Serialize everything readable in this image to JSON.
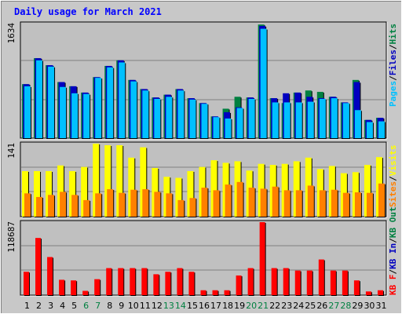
{
  "title": "Daily usage for March 2021",
  "colors": {
    "background": "#c8c8c8",
    "plot_background": "#c0c0c0",
    "title": "#0000ff",
    "hits": "#008040",
    "files": "#0000c0",
    "pages": "#00c0ff",
    "sites": "#ffff00",
    "visits": "#ff8000",
    "kb": "#ff0000",
    "weekend_label": "#008040"
  },
  "chart_data": [
    {
      "type": "bar",
      "panel": "top",
      "ymax_label": "1634",
      "ylim": [
        0,
        1634
      ],
      "legend": [
        {
          "text": "Pages",
          "color": "#00c0ff"
        },
        {
          "text": "Files",
          "color": "#0000c0"
        },
        {
          "text": "Hits",
          "color": "#008040"
        }
      ],
      "categories": [
        "1",
        "2",
        "3",
        "4",
        "5",
        "6",
        "7",
        "8",
        "9",
        "10",
        "11",
        "12",
        "13",
        "14",
        "15",
        "16",
        "17",
        "18",
        "19",
        "20",
        "21",
        "22",
        "23",
        "24",
        "25",
        "26",
        "27",
        "28",
        "29",
        "30",
        "31"
      ],
      "series": [
        {
          "name": "Hits",
          "values": [
            770,
            1140,
            1040,
            800,
            740,
            650,
            870,
            1030,
            1110,
            830,
            700,
            580,
            620,
            700,
            570,
            500,
            310,
            420,
            590,
            580,
            1620,
            570,
            500,
            650,
            680,
            660,
            590,
            510,
            830,
            260,
            290
          ]
        },
        {
          "name": "Files",
          "values": [
            770,
            1140,
            1040,
            800,
            740,
            650,
            870,
            1030,
            1110,
            830,
            700,
            580,
            620,
            700,
            570,
            500,
            310,
            370,
            440,
            580,
            1600,
            570,
            640,
            650,
            590,
            570,
            590,
            510,
            800,
            260,
            290
          ]
        },
        {
          "name": "Pages",
          "values": [
            740,
            1110,
            1020,
            730,
            640,
            630,
            860,
            1010,
            1080,
            810,
            680,
            560,
            590,
            680,
            550,
            490,
            300,
            280,
            430,
            560,
            1560,
            510,
            510,
            510,
            520,
            560,
            570,
            500,
            400,
            230,
            240
          ]
        }
      ]
    },
    {
      "type": "bar",
      "panel": "middle",
      "ymax_label": "141",
      "ylim": [
        0,
        141
      ],
      "legend": [
        {
          "text": "Sites",
          "color": "#ff8000"
        },
        {
          "text": "Visits",
          "color": "#ffff00"
        }
      ],
      "categories": [
        "1",
        "2",
        "3",
        "4",
        "5",
        "6",
        "7",
        "8",
        "9",
        "10",
        "11",
        "12",
        "13",
        "14",
        "15",
        "16",
        "17",
        "18",
        "19",
        "20",
        "21",
        "22",
        "23",
        "24",
        "25",
        "26",
        "27",
        "28",
        "29",
        "30",
        "31"
      ],
      "series": [
        {
          "name": "Visits",
          "values": [
            88,
            88,
            88,
            99,
            88,
            96,
            141,
            138,
            138,
            114,
            134,
            94,
            77,
            75,
            88,
            96,
            109,
            104,
            107,
            89,
            102,
            100,
            102,
            107,
            114,
            92,
            98,
            84,
            86,
            100,
            115
          ]
        },
        {
          "name": "Sites",
          "values": [
            45,
            38,
            42,
            48,
            42,
            32,
            45,
            53,
            46,
            52,
            53,
            48,
            45,
            32,
            36,
            56,
            51,
            62,
            67,
            56,
            54,
            58,
            51,
            51,
            60,
            51,
            52,
            46,
            47,
            46,
            64
          ]
        }
      ]
    },
    {
      "type": "bar",
      "panel": "bottom",
      "ymax_label": "118687",
      "ylim": [
        0,
        118687
      ],
      "legend": [
        {
          "text": "KB F",
          "color": "#ff0000"
        },
        {
          "text": "KB In",
          "color": "#0000c0"
        },
        {
          "text": "KB Out",
          "color": "#008040"
        }
      ],
      "categories": [
        "1",
        "2",
        "3",
        "4",
        "5",
        "6",
        "7",
        "8",
        "9",
        "10",
        "11",
        "12",
        "13",
        "14",
        "15",
        "16",
        "17",
        "18",
        "19",
        "20",
        "21",
        "22",
        "23",
        "24",
        "25",
        "26",
        "27",
        "28",
        "29",
        "30",
        "31"
      ],
      "series": [
        {
          "name": "KB F",
          "values": [
            38000,
            93000,
            62000,
            25000,
            24000,
            7000,
            26000,
            44000,
            44000,
            44000,
            44000,
            34000,
            38000,
            44000,
            38000,
            8000,
            8000,
            8000,
            32000,
            44000,
            118687,
            44000,
            44000,
            40000,
            40000,
            58000,
            40000,
            40000,
            24000,
            6000,
            8000
          ]
        }
      ]
    }
  ],
  "weekend_days": [
    "6",
    "7",
    "13",
    "14",
    "20",
    "21",
    "27",
    "28"
  ]
}
